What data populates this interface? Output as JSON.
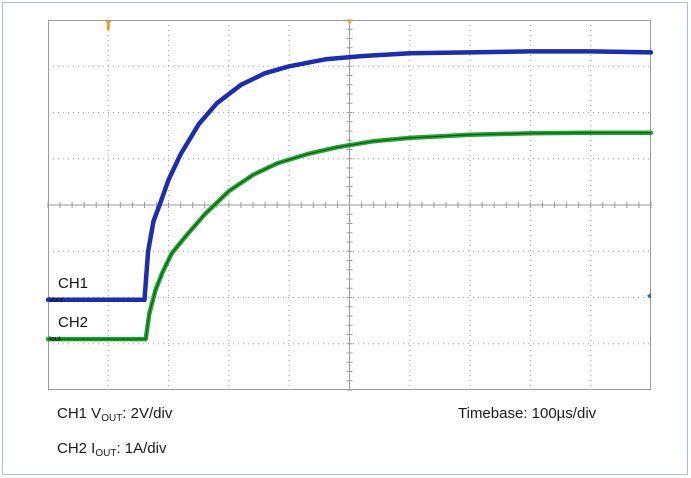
{
  "chart_data": {
    "type": "line",
    "title": "",
    "xlabel": "",
    "ylabel": "",
    "grid": true,
    "divisions": {
      "x": 10,
      "y": 8
    },
    "xlim": [
      0,
      10
    ],
    "ylim": [
      -4,
      4
    ],
    "trigger_time_div": 1.0,
    "series": [
      {
        "name": "CH1",
        "marker_label": "Vout",
        "color": "#1a2db4",
        "x": [
          0,
          1.6,
          1.66,
          1.75,
          1.85,
          2.0,
          2.2,
          2.5,
          2.8,
          3.2,
          3.6,
          4.0,
          4.6,
          5.2,
          6.0,
          7.0,
          8.0,
          9.0,
          10.0
        ],
        "y": [
          -2.05,
          -2.05,
          -1.0,
          -0.35,
          0.0,
          0.55,
          1.1,
          1.75,
          2.2,
          2.6,
          2.85,
          3.0,
          3.15,
          3.22,
          3.28,
          3.3,
          3.32,
          3.32,
          3.3
        ]
      },
      {
        "name": "CH2",
        "marker_label": "Iout",
        "color": "#1ea82d",
        "x": [
          0,
          1.62,
          1.68,
          1.78,
          1.9,
          2.05,
          2.3,
          2.6,
          3.0,
          3.4,
          3.8,
          4.3,
          4.8,
          5.4,
          6.0,
          7.0,
          8.0,
          9.0,
          10.0
        ],
        "y": [
          -2.9,
          -2.9,
          -2.35,
          -1.85,
          -1.45,
          -1.05,
          -0.65,
          -0.2,
          0.3,
          0.65,
          0.9,
          1.1,
          1.25,
          1.38,
          1.45,
          1.52,
          1.55,
          1.56,
          1.56
        ]
      }
    ]
  },
  "channel_labels": {
    "ch1": "CH1",
    "ch2": "CH2"
  },
  "captions": {
    "ch1_prefix": "CH1 V",
    "ch1_sub": "OUT",
    "ch1_suffix": ": 2V/div",
    "ch2_prefix": "CH2 I",
    "ch2_sub": "OUT",
    "ch2_suffix": ": 1A/div",
    "timebase": "Timebase: 100µs/div"
  },
  "colors": {
    "trigger_marker": "#f0a020",
    "grid": "#9a9a9a",
    "ch1": "#1a2db4",
    "ch2": "#1ea82d"
  }
}
